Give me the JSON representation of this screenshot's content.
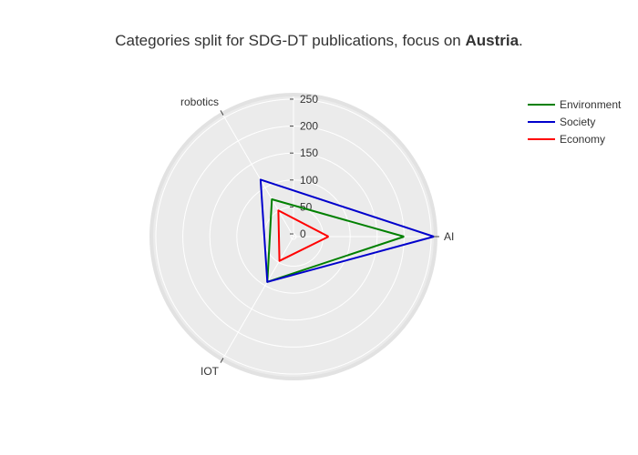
{
  "chart_data": {
    "type": "radar",
    "title": {
      "prefix": "Categories split for SDG-DT publications, focus on ",
      "bold": "Austria",
      "suffix": "."
    },
    "axes": [
      "AI",
      "IOT",
      "robotics"
    ],
    "radial_range": [
      -5,
      255
    ],
    "radial_ticks": [
      "0",
      "50",
      "100",
      "150",
      "200",
      "250"
    ],
    "radial_tick_values": [
      0,
      50,
      100,
      150,
      200,
      250
    ],
    "grid": true,
    "legend_position": "top-right",
    "series": [
      {
        "name": "Environment",
        "color": "#008000",
        "values": [
          200,
          92,
          75
        ]
      },
      {
        "name": "Society",
        "color": "#0000cc",
        "values": [
          255,
          92,
          117
        ]
      },
      {
        "name": "Economy",
        "color": "#ff0000",
        "values": [
          60,
          47,
          51
        ]
      }
    ]
  }
}
